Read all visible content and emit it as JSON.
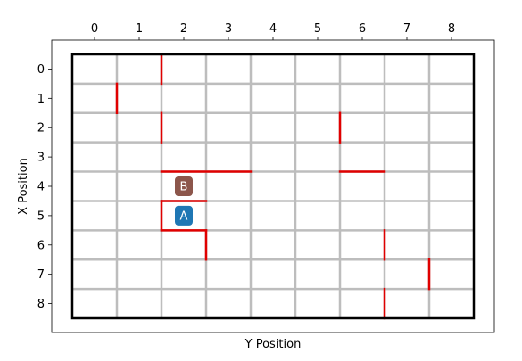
{
  "chart_data": {
    "type": "grid-maze",
    "xlabel": "Y Position",
    "ylabel": "X Position",
    "cols": 9,
    "rows": 9,
    "x_ticks": [
      "0",
      "1",
      "2",
      "3",
      "4",
      "5",
      "6",
      "7",
      "8"
    ],
    "y_ticks": [
      "0",
      "1",
      "2",
      "3",
      "4",
      "5",
      "6",
      "7",
      "8"
    ],
    "x_tick_position": "top",
    "y_origin": "top",
    "grid_color": "#bdbdbd",
    "wall_color": "#e00000",
    "border_color": "#000000",
    "walls": [
      {
        "x1": 1.5,
        "y1": -0.5,
        "x2": 1.5,
        "y2": 0.5
      },
      {
        "x1": 0.5,
        "y1": 0.5,
        "x2": 0.5,
        "y2": 1.5
      },
      {
        "x1": 1.5,
        "y1": 1.5,
        "x2": 1.5,
        "y2": 2.5
      },
      {
        "x1": 5.5,
        "y1": 1.5,
        "x2": 5.5,
        "y2": 2.5
      },
      {
        "x1": 1.5,
        "y1": 3.5,
        "x2": 3.5,
        "y2": 3.5
      },
      {
        "x1": 5.5,
        "y1": 3.5,
        "x2": 6.5,
        "y2": 3.5
      },
      {
        "x1": 1.5,
        "y1": 4.5,
        "x2": 2.5,
        "y2": 4.5
      },
      {
        "x1": 1.5,
        "y1": 4.5,
        "x2": 1.5,
        "y2": 5.5
      },
      {
        "x1": 1.5,
        "y1": 5.5,
        "x2": 2.5,
        "y2": 5.5
      },
      {
        "x1": 2.5,
        "y1": 5.5,
        "x2": 2.5,
        "y2": 6.5
      },
      {
        "x1": 6.5,
        "y1": 5.5,
        "x2": 6.5,
        "y2": 6.5
      },
      {
        "x1": 7.5,
        "y1": 6.5,
        "x2": 7.5,
        "y2": 7.5
      },
      {
        "x1": 6.5,
        "y1": 7.5,
        "x2": 6.5,
        "y2": 8.5
      }
    ],
    "markers": [
      {
        "label": "B",
        "x": 2,
        "y": 4,
        "color": "#8c564b"
      },
      {
        "label": "A",
        "x": 2,
        "y": 5,
        "color": "#1f77b4"
      }
    ]
  }
}
